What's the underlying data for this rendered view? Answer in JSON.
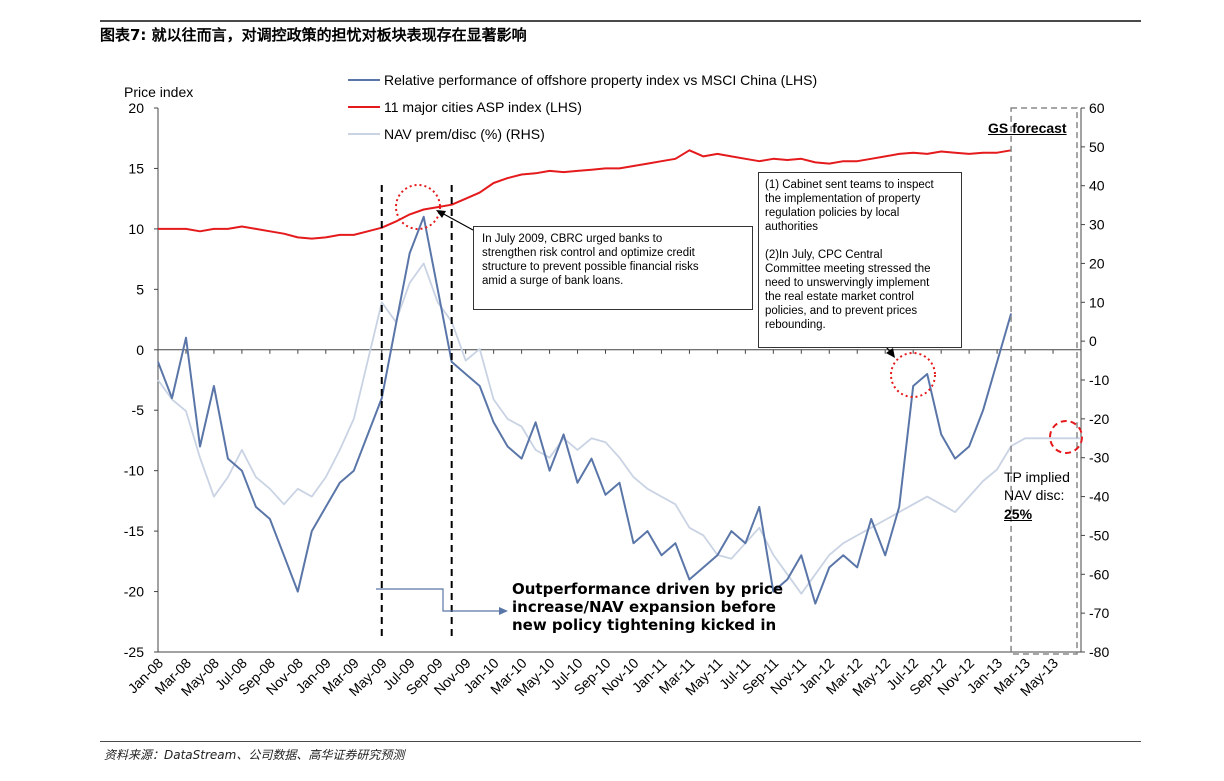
{
  "figure": {
    "title": "图表7: 就以往而言，对调控政策的担忧对板块表现存在显著影响",
    "source": "资料来源：DataStream、公司数据、高华证券研究预测"
  },
  "colors": {
    "relative": "#5a76a8",
    "asp": "#e41a1c",
    "nav": "#c9d3e3",
    "annotation_circle": "#e41a1c"
  },
  "chart_data": {
    "type": "line",
    "y_left_label": "Price index",
    "ylim_left": [
      -25,
      20
    ],
    "yticks_left": [
      "20",
      "15",
      "10",
      "5",
      "0",
      "-5",
      "-10",
      "-15",
      "-20",
      "-25"
    ],
    "ylim_right": [
      -80,
      60
    ],
    "yticks_right": [
      "60",
      "50",
      "40",
      "30",
      "20",
      "10",
      "0",
      "-10",
      "-20",
      "-30",
      "-40",
      "-50",
      "-60",
      "-70",
      "-80"
    ],
    "x_range": [
      "Jan-08",
      "Jul-13"
    ],
    "x_ticks": [
      "Jan-08",
      "Mar-08",
      "May-08",
      "Jul-08",
      "Sep-08",
      "Nov-08",
      "Jan-09",
      "Mar-09",
      "May-09",
      "Jul-09",
      "Sep-09",
      "Nov-09",
      "Jan-10",
      "Mar-10",
      "May-10",
      "Jul-10",
      "Sep-10",
      "Nov-10",
      "Jan-11",
      "Mar-11",
      "May-11",
      "Jul-11",
      "Sep-11",
      "Nov-11",
      "Jan-12",
      "Mar-12",
      "May-12",
      "Jul-12",
      "Sep-12",
      "Nov-12",
      "Jan-13",
      "Mar-13",
      "May-13"
    ],
    "legend_position": "top-center",
    "grid": false,
    "series": [
      {
        "name": "Relative performance of offshore property index vs MSCI China (LHS)",
        "axis": "left",
        "x": [
          "Jan-08",
          "Feb-08",
          "Mar-08",
          "Apr-08",
          "May-08",
          "Jun-08",
          "Jul-08",
          "Aug-08",
          "Sep-08",
          "Oct-08",
          "Nov-08",
          "Dec-08",
          "Jan-09",
          "Feb-09",
          "Mar-09",
          "Apr-09",
          "May-09",
          "Jun-09",
          "Jul-09",
          "Aug-09",
          "Sep-09",
          "Oct-09",
          "Nov-09",
          "Dec-09",
          "Jan-10",
          "Feb-10",
          "Mar-10",
          "Apr-10",
          "May-10",
          "Jun-10",
          "Jul-10",
          "Aug-10",
          "Sep-10",
          "Oct-10",
          "Nov-10",
          "Dec-10",
          "Jan-11",
          "Feb-11",
          "Mar-11",
          "Apr-11",
          "May-11",
          "Jun-11",
          "Jul-11",
          "Aug-11",
          "Sep-11",
          "Oct-11",
          "Nov-11",
          "Dec-11",
          "Jan-12",
          "Feb-12",
          "Mar-12",
          "Apr-12",
          "May-12",
          "Jun-12",
          "Jul-12",
          "Aug-12",
          "Sep-12",
          "Oct-12",
          "Nov-12",
          "Dec-12",
          "Jan-13",
          "Feb-13"
        ],
        "values": [
          -1,
          -4,
          1,
          -8,
          -3,
          -9,
          -10,
          -13,
          -14,
          -17,
          -20,
          -15,
          -13,
          -11,
          -10,
          -7,
          -4,
          2,
          8,
          11,
          5,
          -1,
          -2,
          -3,
          -6,
          -8,
          -9,
          -6,
          -10,
          -7,
          -11,
          -9,
          -12,
          -11,
          -16,
          -15,
          -17,
          -16,
          -19,
          -18,
          -17,
          -15,
          -16,
          -13,
          -20,
          -19,
          -17,
          -21,
          -18,
          -17,
          -18,
          -14,
          -17,
          -13,
          -3,
          -2,
          -7,
          -9,
          -8,
          -5,
          -1,
          3
        ]
      },
      {
        "name": "11 major cities ASP index (LHS)",
        "axis": "left",
        "x": [
          "Jan-08",
          "Feb-08",
          "Mar-08",
          "Apr-08",
          "May-08",
          "Jun-08",
          "Jul-08",
          "Aug-08",
          "Sep-08",
          "Oct-08",
          "Nov-08",
          "Dec-08",
          "Jan-09",
          "Feb-09",
          "Mar-09",
          "Apr-09",
          "May-09",
          "Jun-09",
          "Jul-09",
          "Aug-09",
          "Sep-09",
          "Oct-09",
          "Nov-09",
          "Dec-09",
          "Jan-10",
          "Feb-10",
          "Mar-10",
          "Apr-10",
          "May-10",
          "Jun-10",
          "Jul-10",
          "Aug-10",
          "Sep-10",
          "Oct-10",
          "Nov-10",
          "Dec-10",
          "Jan-11",
          "Feb-11",
          "Mar-11",
          "Apr-11",
          "May-11",
          "Jun-11",
          "Jul-11",
          "Aug-11",
          "Sep-11",
          "Oct-11",
          "Nov-11",
          "Dec-11",
          "Jan-12",
          "Feb-12",
          "Mar-12",
          "Apr-12",
          "May-12",
          "Jun-12",
          "Jul-12",
          "Aug-12",
          "Sep-12",
          "Oct-12",
          "Nov-12",
          "Dec-12",
          "Jan-13",
          "Feb-13"
        ],
        "values": [
          10,
          10,
          10,
          9.8,
          10,
          10,
          10.2,
          10,
          9.8,
          9.6,
          9.3,
          9.2,
          9.3,
          9.5,
          9.5,
          9.8,
          10.1,
          10.6,
          11.2,
          11.6,
          11.8,
          12,
          12.5,
          13,
          13.8,
          14.2,
          14.5,
          14.6,
          14.8,
          14.7,
          14.8,
          14.9,
          15,
          15,
          15.2,
          15.4,
          15.6,
          15.8,
          16.5,
          16,
          16.2,
          16,
          15.8,
          15.6,
          15.8,
          15.7,
          15.8,
          15.5,
          15.4,
          15.6,
          15.6,
          15.8,
          16,
          16.2,
          16.3,
          16.2,
          16.4,
          16.3,
          16.2,
          16.3,
          16.3,
          16.5
        ]
      },
      {
        "name": "NAV prem/disc (%) (RHS)",
        "axis": "right",
        "x": [
          "Jan-08",
          "Feb-08",
          "Mar-08",
          "Apr-08",
          "May-08",
          "Jun-08",
          "Jul-08",
          "Aug-08",
          "Sep-08",
          "Oct-08",
          "Nov-08",
          "Dec-08",
          "Jan-09",
          "Feb-09",
          "Mar-09",
          "Apr-09",
          "May-09",
          "Jun-09",
          "Jul-09",
          "Aug-09",
          "Sep-09",
          "Oct-09",
          "Nov-09",
          "Dec-09",
          "Jan-10",
          "Feb-10",
          "Mar-10",
          "Apr-10",
          "May-10",
          "Jun-10",
          "Jul-10",
          "Aug-10",
          "Sep-10",
          "Oct-10",
          "Nov-10",
          "Dec-10",
          "Jan-11",
          "Feb-11",
          "Mar-11",
          "Apr-11",
          "May-11",
          "Jun-11",
          "Jul-11",
          "Aug-11",
          "Sep-11",
          "Oct-11",
          "Nov-11",
          "Dec-11",
          "Jan-12",
          "Feb-12",
          "Mar-12",
          "Apr-12",
          "May-12",
          "Jun-12",
          "Jul-12",
          "Aug-12",
          "Sep-12",
          "Oct-12",
          "Nov-12",
          "Dec-12",
          "Jan-13",
          "Feb-13",
          "Mar-13",
          "Apr-13",
          "May-13",
          "Jun-13",
          "Jul-13"
        ],
        "values": [
          -10,
          -15,
          -18,
          -30,
          -40,
          -35,
          -28,
          -35,
          -38,
          -42,
          -38,
          -40,
          -35,
          -28,
          -20,
          -5,
          10,
          5,
          15,
          20,
          10,
          5,
          -5,
          -2,
          -15,
          -20,
          -22,
          -28,
          -30,
          -25,
          -28,
          -25,
          -26,
          -30,
          -35,
          -38,
          -40,
          -42,
          -48,
          -50,
          -55,
          -56,
          -52,
          -48,
          -55,
          -60,
          -65,
          -60,
          -55,
          -52,
          -50,
          -48,
          -46,
          -44,
          -42,
          -40,
          -42,
          -44,
          -40,
          -36,
          -33,
          -27,
          -25,
          -25,
          -25,
          -25,
          -25
        ]
      }
    ],
    "vlines": [
      "May-09",
      "Oct-09"
    ],
    "forecast_region": [
      "Feb-13",
      "Jul-13"
    ]
  },
  "labels": {
    "forecast": "GS forecast",
    "tp_line": "TP implied\nNAV disc:",
    "tp_value": "25%"
  },
  "annotations": {
    "cbrc": "In July 2009, CBRC urged banks to\nstrengthen risk control and optimize credit\nstructure to prevent possible financial risks\namid a surge of bank loans.",
    "cabinet_1": "(1) Cabinet sent teams to inspect\nthe implementation of property\nregulation policies by local\nauthorities",
    "cabinet_2": "(2)In July, CPC Central\nCommittee meeting stressed the\nneed to unswervingly implement\nthe real estate market control\npolicies, and to prevent prices\nrebounding.",
    "outperformance": "Outperformance driven by price\nincrease/NAV expansion before\nnew policy tightening kicked in"
  }
}
